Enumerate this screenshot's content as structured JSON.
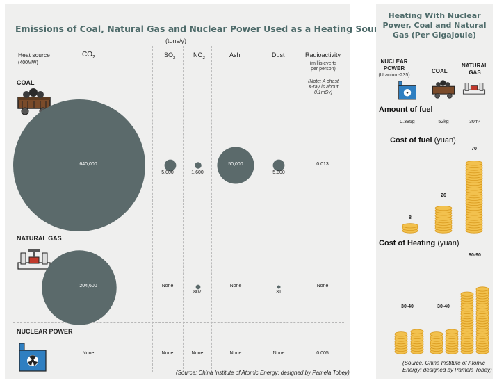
{
  "left": {
    "title": "Emissions of Coal, Natural Gas and Nuclear Power Used as a Heating Source",
    "unit": "(tons/y)",
    "headers": {
      "source": "Heat source",
      "source_sub": "(400MW)",
      "co2": "CO2",
      "so2": "SO2",
      "no2": "NO2",
      "ash": "Ash",
      "dust": "Dust",
      "radio": "Radioactivity",
      "radio_sub": "(millisieverts per person)"
    },
    "note": "(Note: A chest X-ray is about 0.1mSv)",
    "rows": [
      {
        "name": "COAL",
        "icon": "coal-cart-icon",
        "co2": "640,000",
        "so2": "5,000",
        "no2": "1,600",
        "ash": "50,000",
        "dust": "5,000",
        "radio": "0.013"
      },
      {
        "name": "NATURAL GAS",
        "icon": "gas-pipe-icon",
        "co2": "204,600",
        "so2": "None",
        "no2": "807",
        "ash": "None",
        "dust": "31",
        "radio": "None"
      },
      {
        "name": "NUCLEAR POWER",
        "icon": "nuclear-plant-icon",
        "co2": "None",
        "so2": "None",
        "no2": "None",
        "ash": "None",
        "dust": "None",
        "radio": "0.005"
      }
    ],
    "source": "(Source: China Institute of Atomic Energy; designed by Pamela Tobey)"
  },
  "right": {
    "title": "Heating With Nuclear Power, Coal and Natural Gas (Per Gigajoule)",
    "columns": [
      {
        "name": "NUCLEAR POWER",
        "sub": "(Uranium-235)",
        "icon": "nuclear-plant-icon",
        "fuel": "0.385g",
        "cost_fuel": "8",
        "cost_heat": "30-40"
      },
      {
        "name": "COAL",
        "sub": "",
        "icon": "coal-cart-icon",
        "fuel": "52kg",
        "cost_fuel": "26",
        "cost_heat": "30-40"
      },
      {
        "name": "NATURAL GAS",
        "sub": "",
        "icon": "gas-pipe-icon",
        "fuel": "30m³",
        "cost_fuel": "70",
        "cost_heat": "80-90"
      }
    ],
    "amount_label": "Amount of fuel",
    "cost_fuel_label": "Cost of fuel",
    "cost_heat_label": "Cost of Heating",
    "yuan": "(yuan)",
    "source": "(Source: China Institute of Atomic Energy; designed by Pamela Tobey)"
  },
  "colors": {
    "panel": "#efefee",
    "bubble": "#5b6a6b",
    "title": "#4e6b6a",
    "coin": "#f2c14e",
    "coin_edge": "#d99a1e",
    "icon_blue": "#2f7fc1",
    "icon_brown": "#7a4b2a"
  },
  "chart_data": [
    {
      "type": "bubble",
      "title": "Emissions of Coal, Natural Gas and Nuclear Power Used as a Heating Source",
      "unit": "tons/y",
      "categories": [
        "CO2",
        "SO2",
        "NO2",
        "Ash",
        "Dust"
      ],
      "series": [
        {
          "name": "COAL",
          "values": [
            640000,
            5000,
            1600,
            50000,
            5000
          ]
        },
        {
          "name": "NATURAL GAS",
          "values": [
            204600,
            0,
            807,
            0,
            31
          ]
        },
        {
          "name": "NUCLEAR POWER",
          "values": [
            0,
            0,
            0,
            0,
            0
          ]
        }
      ],
      "radioactivity_mSv": {
        "COAL": 0.013,
        "NATURAL GAS": null,
        "NUCLEAR POWER": 0.005
      }
    },
    {
      "type": "bar",
      "title": "Cost of fuel (yuan)",
      "categories": [
        "NUCLEAR POWER",
        "COAL",
        "NATURAL GAS"
      ],
      "values": [
        8,
        26,
        70
      ]
    },
    {
      "type": "bar",
      "title": "Cost of Heating (yuan)",
      "categories": [
        "NUCLEAR POWER",
        "COAL",
        "NATURAL GAS"
      ],
      "ranges": [
        [
          30,
          40
        ],
        [
          30,
          40
        ],
        [
          80,
          90
        ]
      ]
    }
  ]
}
